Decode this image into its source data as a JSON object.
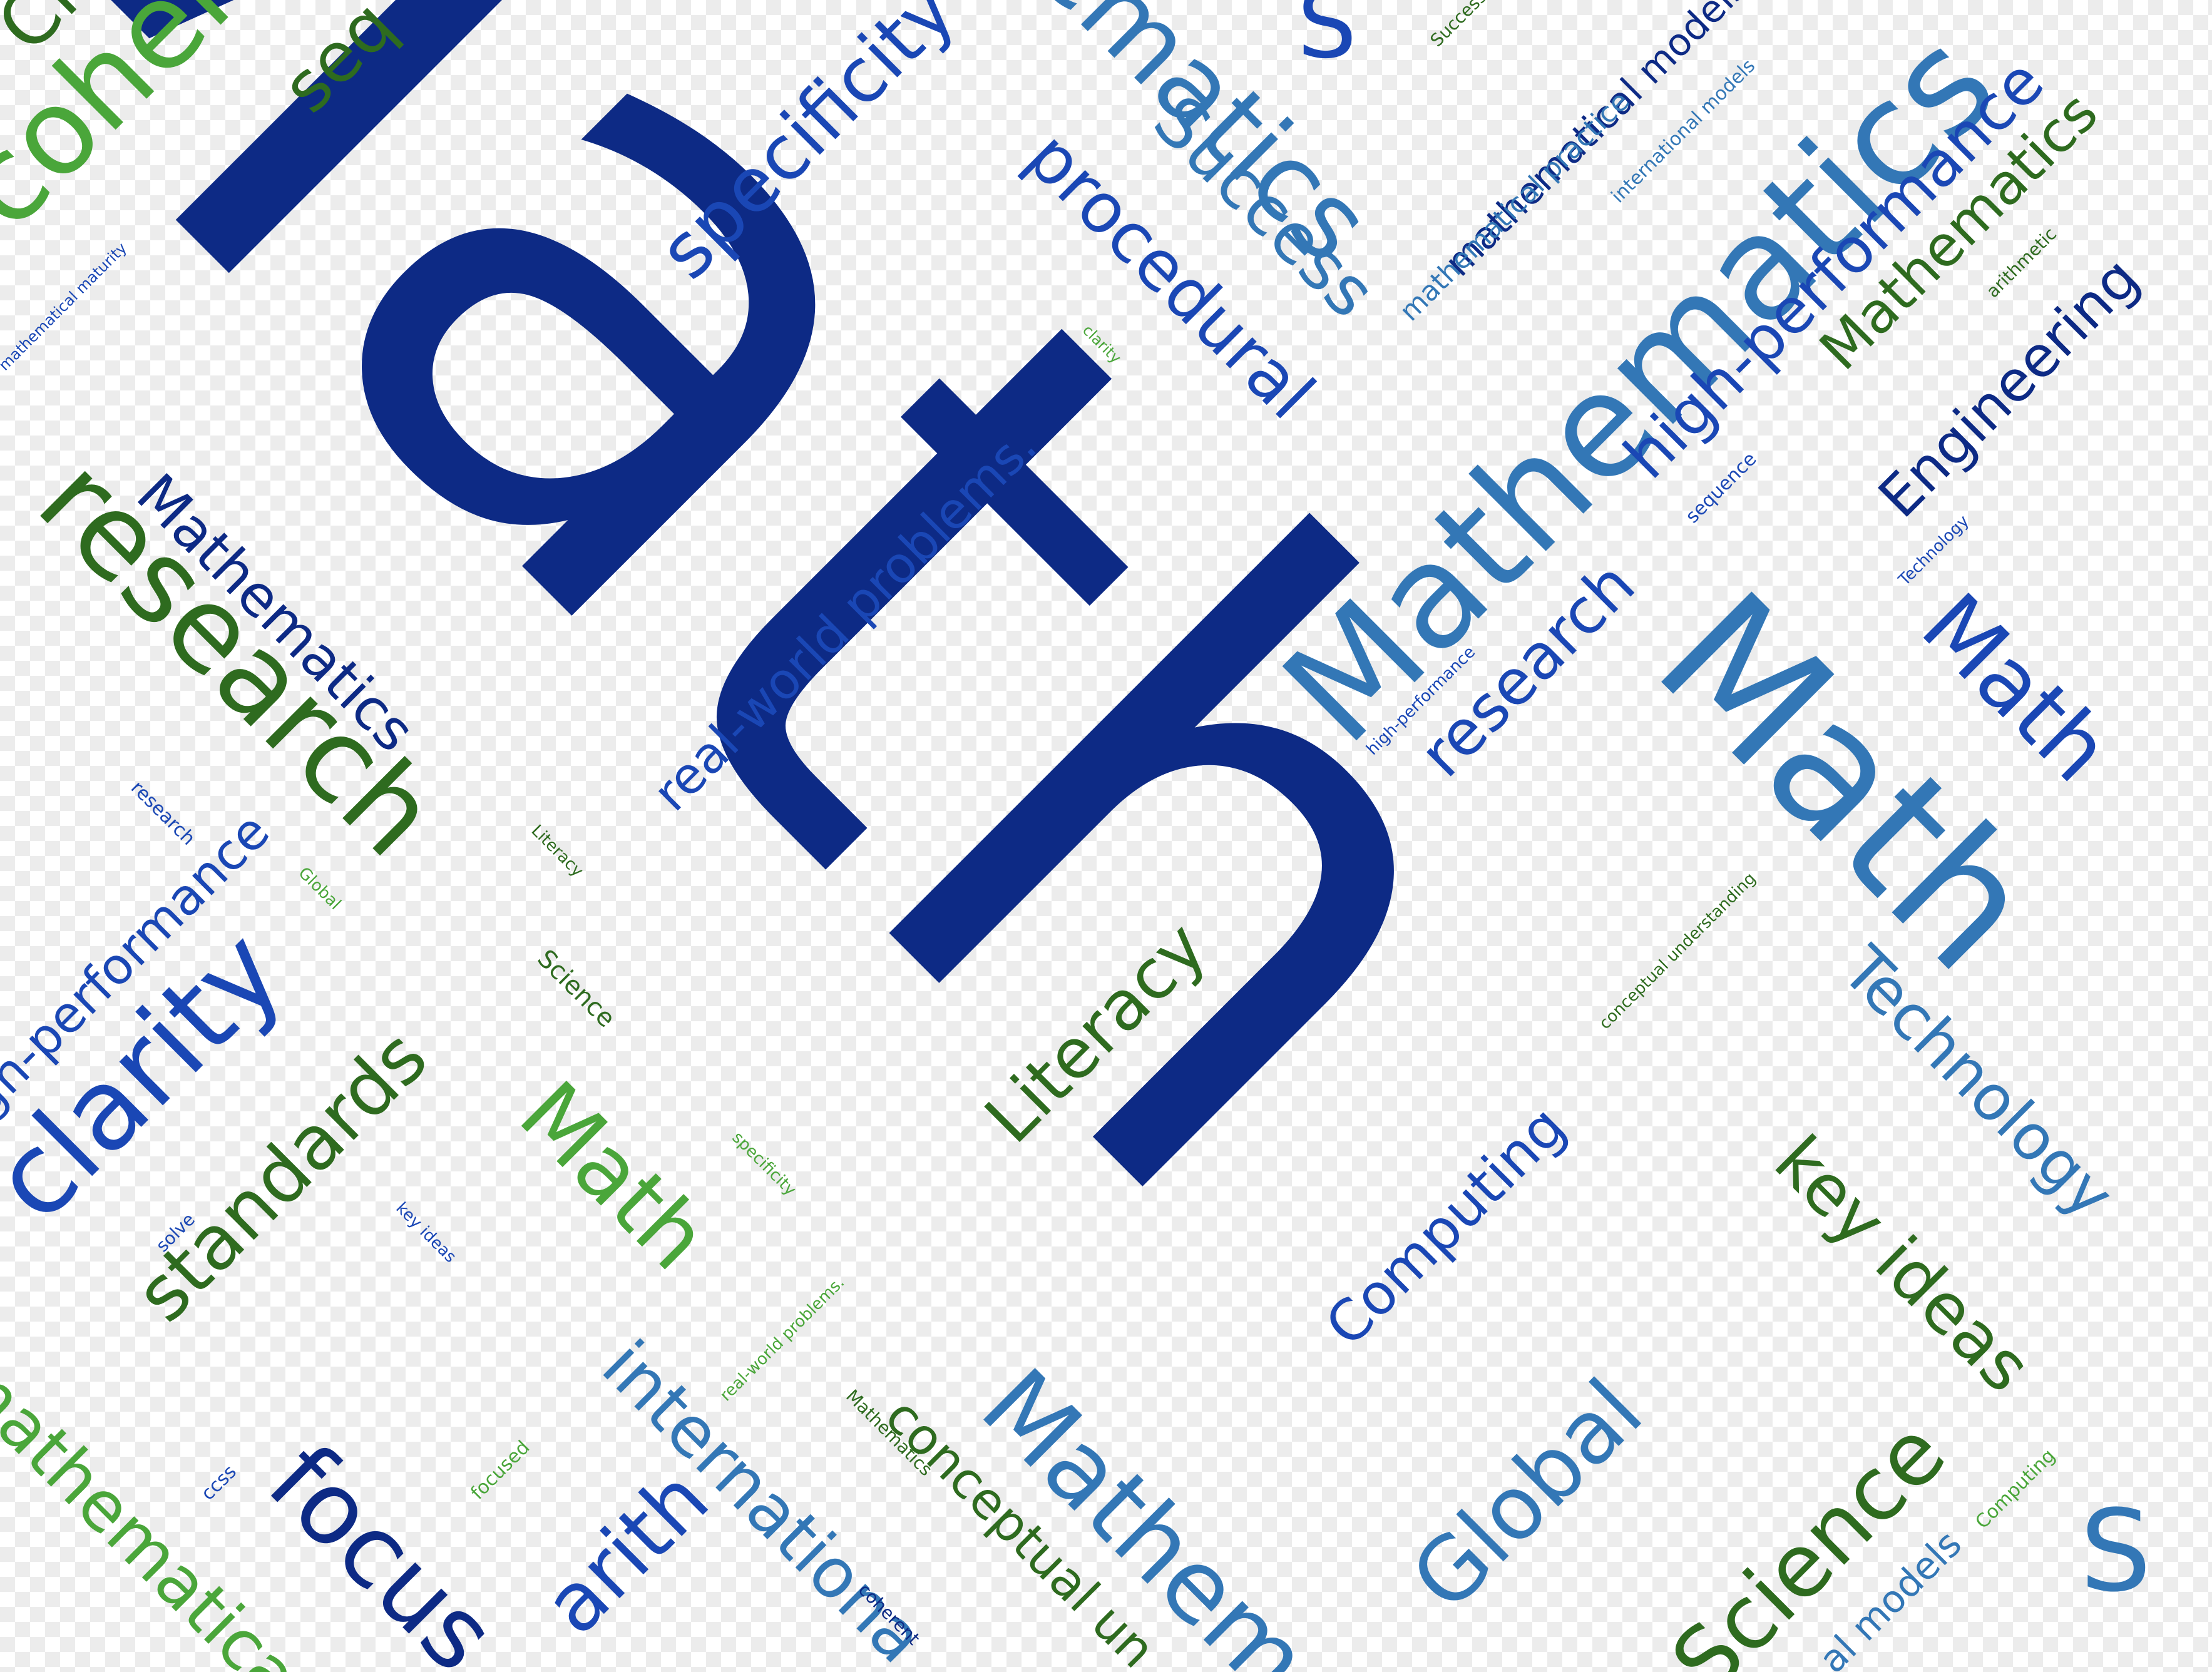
{
  "colors": {
    "navy": "#0d2a85",
    "steel": "#3377b6",
    "royal": "#1a47b5",
    "green": "#2e6b1f",
    "lime": "#4aa63a"
  },
  "words": [
    {
      "text": "Math",
      "color": "navy"
    },
    {
      "text": "Mathematics",
      "color": "steel"
    },
    {
      "text": "Math",
      "color": "steel"
    },
    {
      "text": "research",
      "color": "green"
    },
    {
      "text": "coher",
      "color": "lime"
    },
    {
      "text": "seq",
      "color": "green"
    },
    {
      "text": "Cl",
      "color": "green"
    },
    {
      "text": "specificity",
      "color": "royal"
    },
    {
      "text": "ematics",
      "color": "steel"
    },
    {
      "text": "procedural",
      "color": "royal"
    },
    {
      "text": "Success",
      "color": "steel"
    },
    {
      "text": "S",
      "color": "royal"
    },
    {
      "text": "mathematical models",
      "color": "navy"
    },
    {
      "text": "international models",
      "color": "steel"
    },
    {
      "text": "mathematical practice",
      "color": "steel"
    },
    {
      "text": "Success",
      "color": "green"
    },
    {
      "text": "high-performance",
      "color": "royal"
    },
    {
      "text": "Mathematics",
      "color": "green"
    },
    {
      "text": "Engineering",
      "color": "navy"
    },
    {
      "text": "arithmetic",
      "color": "green"
    },
    {
      "text": "sequence",
      "color": "royal"
    },
    {
      "text": "Technology",
      "color": "royal"
    },
    {
      "text": "Math",
      "color": "royal"
    },
    {
      "text": "research",
      "color": "royal"
    },
    {
      "text": "high-performance",
      "color": "royal"
    },
    {
      "text": "real-world problems.",
      "color": "royal"
    },
    {
      "text": "clarity",
      "color": "lime"
    },
    {
      "text": "mathematical maturity",
      "color": "royal"
    },
    {
      "text": "Mathematics",
      "color": "navy"
    },
    {
      "text": "research",
      "color": "royal"
    },
    {
      "text": "Global",
      "color": "lime"
    },
    {
      "text": "Literacy",
      "color": "green"
    },
    {
      "text": "igh-performance",
      "color": "royal"
    },
    {
      "text": "clarity",
      "color": "royal"
    },
    {
      "text": "Science",
      "color": "green"
    },
    {
      "text": "standards",
      "color": "green"
    },
    {
      "text": "Math",
      "color": "lime"
    },
    {
      "text": "Literacy",
      "color": "green"
    },
    {
      "text": "specificity",
      "color": "lime"
    },
    {
      "text": "solve",
      "color": "royal"
    },
    {
      "text": "key ideas",
      "color": "royal"
    },
    {
      "text": "conceptual understanding",
      "color": "green"
    },
    {
      "text": "Computing",
      "color": "royal"
    },
    {
      "text": "Technology",
      "color": "steel"
    },
    {
      "text": "key ideas",
      "color": "green"
    },
    {
      "text": "mathematical",
      "color": "lime"
    },
    {
      "text": "focus",
      "color": "navy"
    },
    {
      "text": "ccss",
      "color": "royal"
    },
    {
      "text": "focused",
      "color": "lime"
    },
    {
      "text": "arith",
      "color": "royal"
    },
    {
      "text": "internationa",
      "color": "steel"
    },
    {
      "text": "real-world problems.",
      "color": "lime"
    },
    {
      "text": "Mathematics",
      "color": "green"
    },
    {
      "text": "conceptual un",
      "color": "green"
    },
    {
      "text": "coherent",
      "color": "navy"
    },
    {
      "text": "Mathem",
      "color": "steel"
    },
    {
      "text": "Global",
      "color": "steel"
    },
    {
      "text": "Science",
      "color": "green"
    },
    {
      "text": "al models",
      "color": "steel"
    },
    {
      "text": "Computing",
      "color": "lime"
    },
    {
      "text": "S",
      "color": "steel"
    }
  ]
}
